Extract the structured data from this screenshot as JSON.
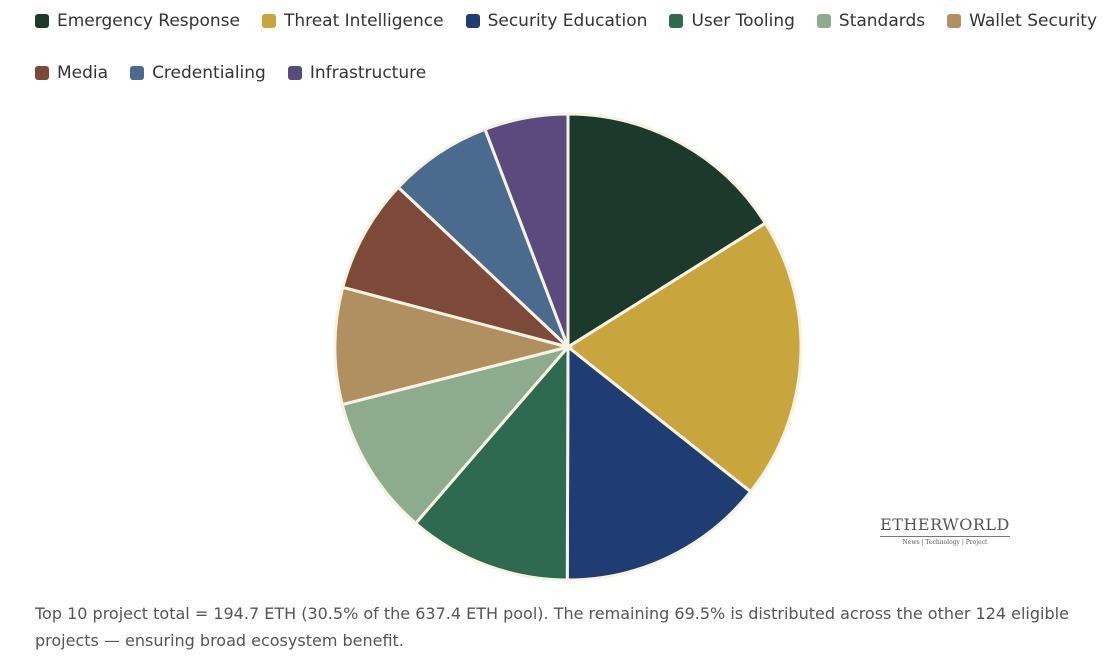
{
  "chart_data": {
    "type": "pie",
    "categories": [
      "Emergency Response",
      "Threat Intelligence",
      "Security Education",
      "User Tooling",
      "Standards",
      "Wallet Security",
      "Media",
      "Credentialing",
      "Infrastructure"
    ],
    "values": [
      16.1,
      19.6,
      14.4,
      11.3,
      9.7,
      8.1,
      7.9,
      7.2,
      5.8
    ],
    "colors": [
      "#1b3a2b",
      "#c9a53e",
      "#1f3d72",
      "#2d6a4f",
      "#8dab8e",
      "#b09060",
      "#7d4a3a",
      "#4a6b8e",
      "#5b4a7d"
    ],
    "note": "Top 10 project total = 194.7 ETH (30.5% of the 637.4 ETH pool). The remaining 69.5% is distributed across the other 124 eligible projects — ensuring broad ecosystem benefit.",
    "watermark": {
      "title": "ETHERWORLD",
      "subtitle": "News | Technology | Project"
    }
  }
}
